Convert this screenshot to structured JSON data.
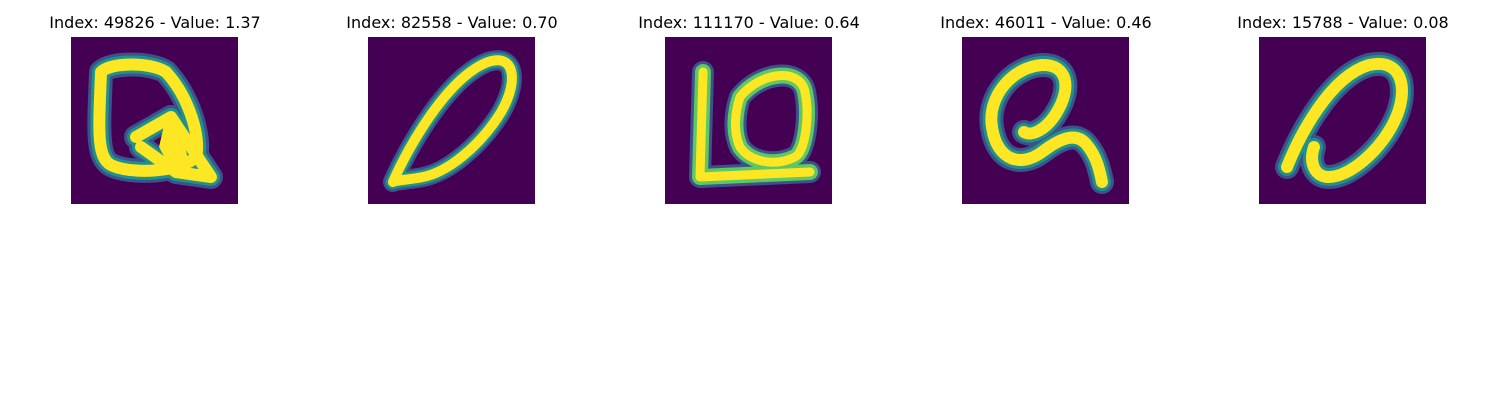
{
  "colors": {
    "background": "#440154",
    "stroke_core": "#fde725",
    "stroke_mid": "#5ec962",
    "stroke_edge": "#21918c",
    "stroke_outer": "#3b528b"
  },
  "panels": [
    {
      "title": "Index: 49826 - Value: 1.37",
      "glyph": "handwritten-q"
    },
    {
      "title": "Index: 82558 - Value: 0.70",
      "glyph": "handwritten-zero-slanted"
    },
    {
      "title": "Index: 111170 - Value: 0.64",
      "glyph": "handwritten-lo"
    },
    {
      "title": "Index: 46011 - Value: 0.46",
      "glyph": "handwritten-r"
    },
    {
      "title": "Index: 15788 - Value: 0.08",
      "glyph": "handwritten-zero-slanted"
    }
  ]
}
